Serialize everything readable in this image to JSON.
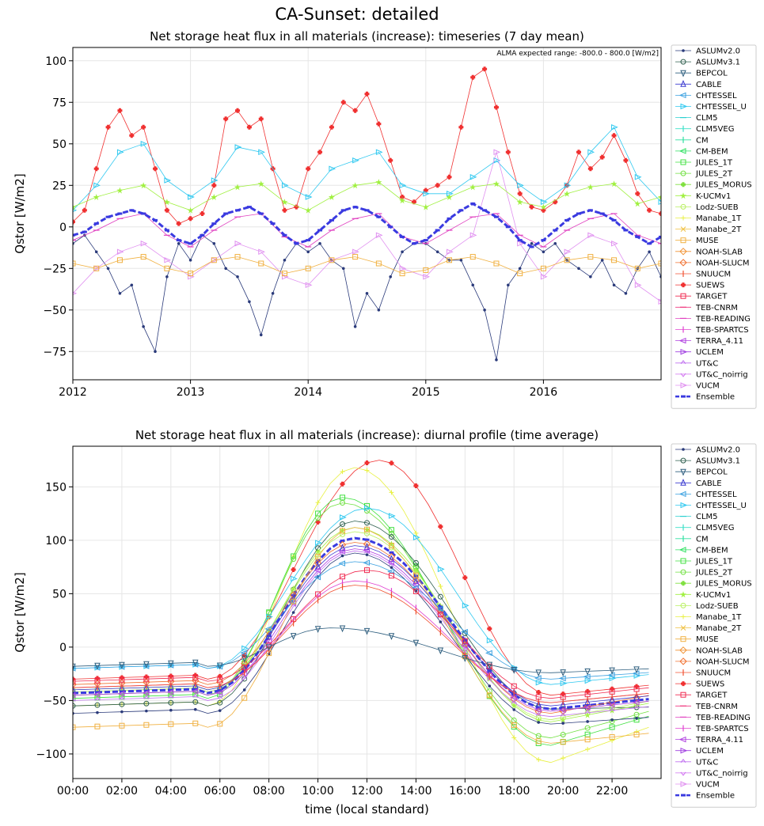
{
  "page_title": "CA-Sunset: detailed",
  "legend_models": [
    {
      "name": "ASLUMv2.0",
      "color": "#2a3a7a",
      "marker": "dot"
    },
    {
      "name": "ASLUMv3.1",
      "color": "#2f5f4f",
      "marker": "circle"
    },
    {
      "name": "BEPCOL",
      "color": "#2f5f7f",
      "marker": "tri-down"
    },
    {
      "name": "CABLE",
      "color": "#3a3ad0",
      "marker": "tri-up"
    },
    {
      "name": "CHTESSEL",
      "color": "#3aa0e0",
      "marker": "tri-left"
    },
    {
      "name": "CHTESSEL_U",
      "color": "#2ec8f0",
      "marker": "tri-right"
    },
    {
      "name": "CLM5",
      "color": "#2ad0d0",
      "marker": "hline"
    },
    {
      "name": "CLM5VEG",
      "color": "#3ae0c8",
      "marker": "vline"
    },
    {
      "name": "CM",
      "color": "#2ee0a0",
      "marker": "vline"
    },
    {
      "name": "CM-BEM",
      "color": "#2ee060",
      "marker": "tri-left"
    },
    {
      "name": "JULES_1T",
      "color": "#40e040",
      "marker": "square"
    },
    {
      "name": "JULES_2T",
      "color": "#70e040",
      "marker": "hexagon"
    },
    {
      "name": "JULES_MORUS",
      "color": "#80e040",
      "marker": "plus-filled"
    },
    {
      "name": "K-UCMv1",
      "color": "#a0f040",
      "marker": "star"
    },
    {
      "name": "Lodz-SUEB",
      "color": "#b8f060",
      "marker": "circle"
    },
    {
      "name": "Manabe_1T",
      "color": "#e8f040",
      "marker": "plus"
    },
    {
      "name": "Manabe_2T",
      "color": "#f0c040",
      "marker": "x"
    },
    {
      "name": "MUSE",
      "color": "#f0b040",
      "marker": "square"
    },
    {
      "name": "NOAH-SLAB",
      "color": "#f09030",
      "marker": "diamond"
    },
    {
      "name": "NOAH-SLUCM",
      "color": "#f07030",
      "marker": "diamond"
    },
    {
      "name": "SNUUCM",
      "color": "#f05030",
      "marker": "vline"
    },
    {
      "name": "SUEWS",
      "color": "#f03030",
      "marker": "plus-filled"
    },
    {
      "name": "TARGET",
      "color": "#f02a50",
      "marker": "square-x"
    },
    {
      "name": "TEB-CNRM",
      "color": "#f03a80",
      "marker": "hline"
    },
    {
      "name": "TEB-READING",
      "color": "#e040c0",
      "marker": "hline"
    },
    {
      "name": "TEB-SPARTCS",
      "color": "#e040d0",
      "marker": "vline"
    },
    {
      "name": "TERRA_4.11",
      "color": "#b040e0",
      "marker": "tri-left"
    },
    {
      "name": "UCLEM",
      "color": "#a040e0",
      "marker": "tri-right"
    },
    {
      "name": "UT&C",
      "color": "#c070f0",
      "marker": "caret-up"
    },
    {
      "name": "UT&C_noirrig",
      "color": "#d070f0",
      "marker": "caret-down"
    },
    {
      "name": "VUCM",
      "color": "#e090f0",
      "marker": "tri-right"
    },
    {
      "name": "Ensemble",
      "color": "#3a3ae0",
      "marker": "dash"
    }
  ],
  "chart_data": [
    {
      "type": "line",
      "title": "Net storage heat flux in all materials (increase): timeseries (7 day mean)",
      "annotation": "ALMA expected range: -800.0 - 800.0 [W/m2]",
      "ylabel": "Qstor [W/m2]",
      "xlabel": "",
      "xlim": [
        2012.0,
        2017.0
      ],
      "ylim": [
        -92,
        108
      ],
      "x_ticks": [
        2012,
        2013,
        2014,
        2015,
        2016
      ],
      "x_tick_labels": [
        "2012",
        "2013",
        "2014",
        "2015",
        "2016"
      ],
      "y_ticks": [
        -75,
        -50,
        -25,
        0,
        25,
        50,
        75,
        100
      ],
      "y_tick_labels": [
        "−75",
        "−50",
        "−25",
        "0",
        "25",
        "50",
        "75",
        "100"
      ],
      "grid": true,
      "legend": "outside-right",
      "series": [
        {
          "name": "SUEWS",
          "x": [
            2012.0,
            2012.1,
            2012.2,
            2012.3,
            2012.4,
            2012.5,
            2012.6,
            2012.7,
            2012.8,
            2012.9,
            2013.0,
            2013.1,
            2013.2,
            2013.3,
            2013.4,
            2013.5,
            2013.6,
            2013.7,
            2013.8,
            2013.9,
            2014.0,
            2014.1,
            2014.2,
            2014.3,
            2014.4,
            2014.5,
            2014.6,
            2014.7,
            2014.8,
            2014.9,
            2015.0,
            2015.1,
            2015.2,
            2015.3,
            2015.4,
            2015.5,
            2015.6,
            2015.7,
            2015.8,
            2015.9,
            2016.0,
            2016.1,
            2016.2,
            2016.3,
            2016.4,
            2016.5,
            2016.6,
            2016.7,
            2016.8,
            2016.9,
            2017.0
          ],
          "values": [
            3,
            10,
            35,
            60,
            70,
            55,
            60,
            35,
            10,
            2,
            5,
            8,
            25,
            65,
            70,
            60,
            65,
            35,
            10,
            12,
            35,
            45,
            60,
            75,
            70,
            80,
            62,
            40,
            18,
            15,
            22,
            25,
            30,
            60,
            90,
            95,
            72,
            45,
            20,
            12,
            10,
            15,
            25,
            45,
            35,
            42,
            55,
            40,
            20,
            10,
            8
          ]
        },
        {
          "name": "CHTESSEL_U",
          "x": [
            2012.0,
            2012.2,
            2012.4,
            2012.6,
            2012.8,
            2013.0,
            2013.2,
            2013.4,
            2013.6,
            2013.8,
            2014.0,
            2014.2,
            2014.4,
            2014.6,
            2014.8,
            2015.0,
            2015.2,
            2015.4,
            2015.6,
            2015.8,
            2016.0,
            2016.2,
            2016.4,
            2016.6,
            2016.8,
            2017.0
          ],
          "values": [
            10,
            25,
            45,
            50,
            28,
            18,
            28,
            48,
            45,
            25,
            18,
            35,
            40,
            45,
            25,
            20,
            20,
            30,
            40,
            25,
            15,
            25,
            45,
            60,
            30,
            15
          ]
        },
        {
          "name": "ASLUMv2.0",
          "x": [
            2012.0,
            2012.1,
            2012.2,
            2012.3,
            2012.4,
            2012.5,
            2012.6,
            2012.7,
            2012.8,
            2012.9,
            2013.0,
            2013.1,
            2013.2,
            2013.3,
            2013.4,
            2013.5,
            2013.6,
            2013.7,
            2013.8,
            2013.9,
            2014.0,
            2014.1,
            2014.2,
            2014.3,
            2014.4,
            2014.5,
            2014.6,
            2014.7,
            2014.8,
            2014.9,
            2015.0,
            2015.1,
            2015.2,
            2015.3,
            2015.4,
            2015.5,
            2015.6,
            2015.7,
            2015.8,
            2015.9,
            2016.0,
            2016.1,
            2016.2,
            2016.3,
            2016.4,
            2016.5,
            2016.6,
            2016.7,
            2016.8,
            2016.9,
            2017.0
          ],
          "values": [
            -10,
            -5,
            -15,
            -25,
            -40,
            -35,
            -60,
            -75,
            -30,
            -10,
            -20,
            -5,
            -10,
            -25,
            -30,
            -45,
            -65,
            -40,
            -20,
            -10,
            -15,
            -10,
            -20,
            -25,
            -60,
            -40,
            -50,
            -30,
            -15,
            -10,
            -10,
            -15,
            -20,
            -20,
            -35,
            -50,
            -80,
            -35,
            -25,
            -10,
            -15,
            -10,
            -20,
            -25,
            -30,
            -20,
            -35,
            -40,
            -25,
            -15,
            -30
          ]
        },
        {
          "name": "VUCM",
          "x": [
            2012.0,
            2012.2,
            2012.4,
            2012.6,
            2012.8,
            2013.0,
            2013.2,
            2013.4,
            2013.6,
            2013.8,
            2014.0,
            2014.2,
            2014.4,
            2014.6,
            2014.8,
            2015.0,
            2015.2,
            2015.4,
            2015.6,
            2015.8,
            2016.0,
            2016.2,
            2016.4,
            2016.6,
            2016.8,
            2017.0
          ],
          "values": [
            -40,
            -25,
            -15,
            -10,
            -20,
            -30,
            -20,
            -10,
            -15,
            -30,
            -35,
            -20,
            -15,
            -5,
            -25,
            -30,
            -15,
            -5,
            45,
            -10,
            -30,
            -15,
            -5,
            -10,
            -35,
            -45
          ]
        },
        {
          "name": "MUSE",
          "x": [
            2012.0,
            2012.2,
            2012.4,
            2012.6,
            2012.8,
            2013.0,
            2013.2,
            2013.4,
            2013.6,
            2013.8,
            2014.0,
            2014.2,
            2014.4,
            2014.6,
            2014.8,
            2015.0,
            2015.2,
            2015.4,
            2015.6,
            2015.8,
            2016.0,
            2016.2,
            2016.4,
            2016.6,
            2016.8,
            2017.0
          ],
          "values": [
            -22,
            -25,
            -20,
            -18,
            -25,
            -28,
            -20,
            -18,
            -22,
            -28,
            -25,
            -20,
            -18,
            -22,
            -28,
            -26,
            -20,
            -18,
            -22,
            -28,
            -25,
            -20,
            -18,
            -20,
            -25,
            -22
          ]
        },
        {
          "name": "K-UCMv1",
          "x": [
            2012.0,
            2012.2,
            2012.4,
            2012.6,
            2012.8,
            2013.0,
            2013.2,
            2013.4,
            2013.6,
            2013.8,
            2014.0,
            2014.2,
            2014.4,
            2014.6,
            2014.8,
            2015.0,
            2015.2,
            2015.4,
            2015.6,
            2015.8,
            2016.0,
            2016.2,
            2016.4,
            2016.6,
            2016.8,
            2017.0
          ],
          "values": [
            12,
            18,
            22,
            25,
            15,
            10,
            18,
            24,
            26,
            15,
            10,
            18,
            25,
            27,
            16,
            12,
            18,
            24,
            26,
            15,
            12,
            20,
            24,
            26,
            14,
            18
          ]
        },
        {
          "name": "TEB-READING",
          "x": [
            2012.0,
            2012.2,
            2012.4,
            2012.6,
            2012.8,
            2013.0,
            2013.2,
            2013.4,
            2013.6,
            2013.8,
            2014.0,
            2014.2,
            2014.4,
            2014.6,
            2014.8,
            2015.0,
            2015.2,
            2015.4,
            2015.6,
            2015.8,
            2016.0,
            2016.2,
            2016.4,
            2016.6,
            2016.8,
            2017.0
          ],
          "values": [
            -8,
            -2,
            5,
            8,
            -5,
            -12,
            -2,
            6,
            8,
            -6,
            -12,
            -2,
            5,
            8,
            -6,
            -10,
            -2,
            6,
            8,
            -5,
            -12,
            -2,
            5,
            8,
            -5,
            -10
          ]
        },
        {
          "name": "Ensemble",
          "x": [
            2012.0,
            2012.1,
            2012.2,
            2012.3,
            2012.4,
            2012.5,
            2012.6,
            2012.7,
            2012.8,
            2012.9,
            2013.0,
            2013.1,
            2013.2,
            2013.3,
            2013.4,
            2013.5,
            2013.6,
            2013.7,
            2013.8,
            2013.9,
            2014.0,
            2014.1,
            2014.2,
            2014.3,
            2014.4,
            2014.5,
            2014.6,
            2014.7,
            2014.8,
            2014.9,
            2015.0,
            2015.1,
            2015.2,
            2015.3,
            2015.4,
            2015.5,
            2015.6,
            2015.7,
            2015.8,
            2015.9,
            2016.0,
            2016.1,
            2016.2,
            2016.3,
            2016.4,
            2016.5,
            2016.6,
            2016.7,
            2016.8,
            2016.9,
            2017.0
          ],
          "values": [
            -5,
            -3,
            2,
            6,
            8,
            10,
            8,
            4,
            -2,
            -8,
            -10,
            -5,
            2,
            8,
            10,
            12,
            8,
            2,
            -5,
            -10,
            -8,
            -2,
            4,
            10,
            12,
            10,
            6,
            0,
            -6,
            -10,
            -8,
            -2,
            5,
            10,
            14,
            10,
            6,
            0,
            -8,
            -12,
            -8,
            -2,
            4,
            8,
            10,
            8,
            4,
            -2,
            -6,
            -10,
            -6
          ]
        }
      ]
    },
    {
      "type": "line",
      "title": "Net storage heat flux in all materials (increase): diurnal profile (time average)",
      "xlabel": "time (local standard)",
      "ylabel": "Qstor [W/m2]",
      "xlim": [
        0,
        24
      ],
      "ylim": [
        -123,
        188
      ],
      "x_ticks": [
        0,
        2,
        4,
        6,
        8,
        10,
        12,
        14,
        16,
        18,
        20,
        22
      ],
      "x_tick_labels": [
        "00:00",
        "02:00",
        "04:00",
        "06:00",
        "08:00",
        "10:00",
        "12:00",
        "14:00",
        "16:00",
        "18:00",
        "20:00",
        "22:00"
      ],
      "y_ticks": [
        -100,
        -50,
        0,
        50,
        100,
        150
      ],
      "y_tick_labels": [
        "−100",
        "−50",
        "0",
        "50",
        "100",
        "150"
      ],
      "grid": true,
      "legend": "outside-right",
      "series": [
        {
          "name": "SUEWS",
          "base": -30,
          "peak": 175,
          "tpeak": 12.5,
          "min": -45
        },
        {
          "name": "Manabe_1T",
          "base": -55,
          "peak": 168,
          "tpeak": 11.5,
          "min": -108
        },
        {
          "name": "JULES_1T",
          "base": -48,
          "peak": 140,
          "tpeak": 11.0,
          "min": -92
        },
        {
          "name": "JULES_2T",
          "base": -45,
          "peak": 135,
          "tpeak": 11.0,
          "min": -85
        },
        {
          "name": "CHTESSEL_U",
          "base": -20,
          "peak": 130,
          "tpeak": 12.0,
          "min": -35
        },
        {
          "name": "ASLUMv3.1",
          "base": -55,
          "peak": 118,
          "tpeak": 11.5,
          "min": -58
        },
        {
          "name": "K-UCMv1",
          "base": -42,
          "peak": 112,
          "tpeak": 11.5,
          "min": -70
        },
        {
          "name": "Lodz-SUEB",
          "base": -40,
          "peak": 108,
          "tpeak": 11.5,
          "min": -68
        },
        {
          "name": "Ensemble",
          "base": -43,
          "peak": 102,
          "tpeak": 11.5,
          "min": -58
        },
        {
          "name": "NOAH-SLUCM",
          "base": -35,
          "peak": 98,
          "tpeak": 11.5,
          "min": -62
        },
        {
          "name": "CABLE",
          "base": -40,
          "peak": 95,
          "tpeak": 11.5,
          "min": -55
        },
        {
          "name": "TERRA_4.11",
          "base": -45,
          "peak": 92,
          "tpeak": 11.5,
          "min": -60
        },
        {
          "name": "UT&C",
          "base": -50,
          "peak": 90,
          "tpeak": 11.5,
          "min": -65
        },
        {
          "name": "ASLUMv2.0",
          "base": -62,
          "peak": 88,
          "tpeak": 11.5,
          "min": -72
        },
        {
          "name": "CHTESSEL",
          "base": -20,
          "peak": 80,
          "tpeak": 11.5,
          "min": -30
        },
        {
          "name": "MUSE",
          "base": -75,
          "peak": 112,
          "tpeak": 11.5,
          "min": -90
        },
        {
          "name": "TARGET",
          "base": -32,
          "peak": 72,
          "tpeak": 12.0,
          "min": -48
        },
        {
          "name": "TEB-SPARTCS",
          "base": -38,
          "peak": 62,
          "tpeak": 11.5,
          "min": -52
        },
        {
          "name": "SNUUCM",
          "base": -38,
          "peak": 58,
          "tpeak": 11.5,
          "min": -52
        },
        {
          "name": "BEPCOL",
          "base": -18,
          "peak": 18,
          "tpeak": 10.5,
          "min": -24
        }
      ]
    }
  ]
}
